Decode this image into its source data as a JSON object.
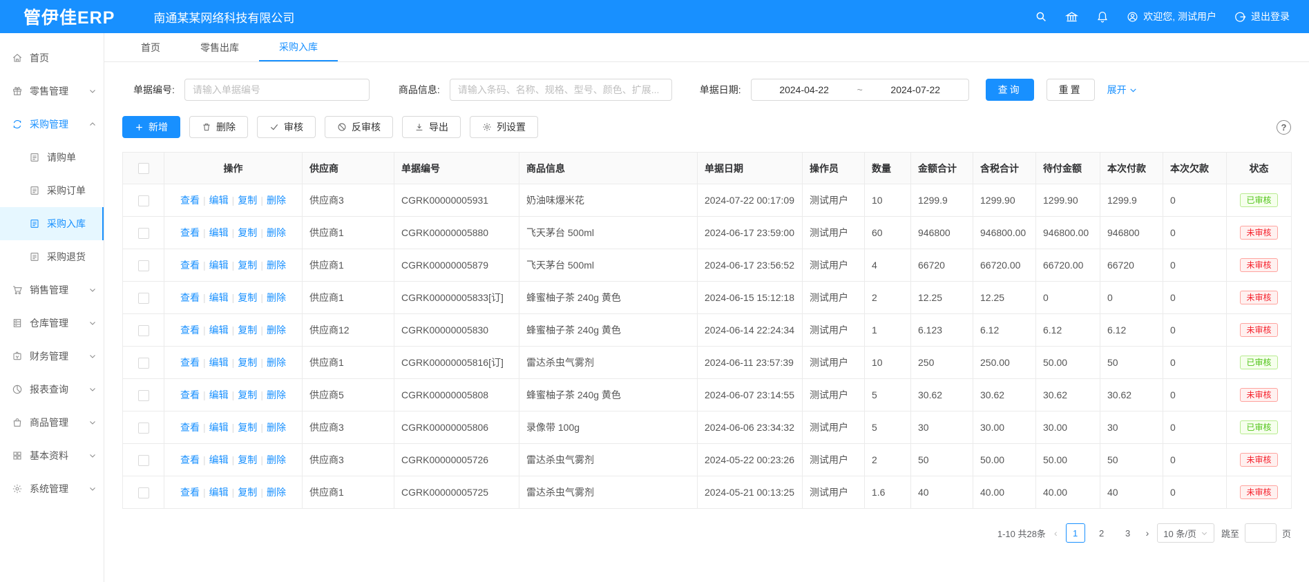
{
  "topbar": {
    "logo": "管伊佳ERP",
    "company": "南通某某网络科技有限公司",
    "welcome": "欢迎您, 测试用户",
    "logout": "退出登录"
  },
  "tabs": [
    {
      "label": "首页",
      "active": false
    },
    {
      "label": "零售出库",
      "active": false
    },
    {
      "label": "采购入库",
      "active": true
    }
  ],
  "sidebar": {
    "items": [
      {
        "name": "home",
        "icon": "home-icon",
        "label": "首页"
      },
      {
        "name": "retail-mgmt",
        "icon": "gift-icon",
        "label": "零售管理",
        "chevron": "down"
      },
      {
        "name": "purchase-mgmt",
        "icon": "sync-icon",
        "label": "采购管理",
        "chevron": "up",
        "parentActive": true
      },
      {
        "name": "purchase-request",
        "icon": "doc-icon",
        "label": "请购单",
        "child": true
      },
      {
        "name": "purchase-order",
        "icon": "doc-icon",
        "label": "采购订单",
        "child": true
      },
      {
        "name": "purchase-inbound",
        "icon": "doc-icon",
        "label": "采购入库",
        "child": true,
        "active": true
      },
      {
        "name": "purchase-return",
        "icon": "doc-icon",
        "label": "采购退货",
        "child": true
      },
      {
        "name": "sales-mgmt",
        "icon": "cart-icon",
        "label": "销售管理",
        "chevron": "down"
      },
      {
        "name": "warehouse-mgmt",
        "icon": "warehouse-icon",
        "label": "仓库管理",
        "chevron": "down"
      },
      {
        "name": "finance-mgmt",
        "icon": "finance-icon",
        "label": "财务管理",
        "chevron": "down"
      },
      {
        "name": "report-query",
        "icon": "pie-chart-icon",
        "label": "报表查询",
        "chevron": "down"
      },
      {
        "name": "goods-mgmt",
        "icon": "bag-icon",
        "label": "商品管理",
        "chevron": "down"
      },
      {
        "name": "basic-data",
        "icon": "grid-icon",
        "label": "基本资料",
        "chevron": "down"
      },
      {
        "name": "system-mgmt",
        "icon": "gear-icon",
        "label": "系统管理",
        "chevron": "down"
      }
    ]
  },
  "filters": {
    "order_no_label": "单据编号:",
    "order_no_placeholder": "请输入单据编号",
    "product_label": "商品信息:",
    "product_placeholder": "请输入条码、名称、规格、型号、颜色、扩展...",
    "date_label": "单据日期:",
    "date_start": "2024-04-22",
    "date_separator": "~",
    "date_end": "2024-07-22",
    "search_label": "查询",
    "reset_label": "重置",
    "expand_label": "展开"
  },
  "toolbar": {
    "buttons": [
      "新增",
      "删除",
      "审核",
      "反审核",
      "导出",
      "列设置"
    ]
  },
  "table": {
    "headers": [
      "操作",
      "供应商",
      "单据编号",
      "商品信息",
      "单据日期",
      "操作员",
      "数量",
      "金额合计",
      "含税合计",
      "待付金额",
      "本次付款",
      "本次欠款",
      "状态"
    ],
    "action_links": [
      "查看",
      "编辑",
      "复制",
      "删除"
    ],
    "rows": [
      {
        "supplier": "供应商3",
        "order_no": "CGRK00000005931",
        "product": "奶油味爆米花",
        "date": "2024-07-22 00:17:09",
        "operator": "测试用户",
        "qty": "10",
        "amount": "1299.9",
        "tax": "1299.90",
        "payable": "1299.90",
        "paid": "1299.9",
        "owed": "0",
        "status": "已审核",
        "status_type": "approved"
      },
      {
        "supplier": "供应商1",
        "order_no": "CGRK00000005880",
        "product": "飞天茅台 500ml",
        "date": "2024-06-17 23:59:00",
        "operator": "测试用户",
        "qty": "60",
        "amount": "946800",
        "tax": "946800.00",
        "payable": "946800.00",
        "paid": "946800",
        "owed": "0",
        "status": "未审核",
        "status_type": "pending"
      },
      {
        "supplier": "供应商1",
        "order_no": "CGRK00000005879",
        "product": "飞天茅台 500ml",
        "date": "2024-06-17 23:56:52",
        "operator": "测试用户",
        "qty": "4",
        "amount": "66720",
        "tax": "66720.00",
        "payable": "66720.00",
        "paid": "66720",
        "owed": "0",
        "status": "未审核",
        "status_type": "pending"
      },
      {
        "supplier": "供应商1",
        "order_no": "CGRK00000005833[订]",
        "product": "蜂蜜柚子茶 240g 黄色",
        "date": "2024-06-15 15:12:18",
        "operator": "测试用户",
        "qty": "2",
        "amount": "12.25",
        "tax": "12.25",
        "payable": "0",
        "paid": "0",
        "owed": "0",
        "status": "未审核",
        "status_type": "pending"
      },
      {
        "supplier": "供应商12",
        "order_no": "CGRK00000005830",
        "product": "蜂蜜柚子茶 240g 黄色",
        "date": "2024-06-14 22:24:34",
        "operator": "测试用户",
        "qty": "1",
        "amount": "6.123",
        "tax": "6.12",
        "payable": "6.12",
        "paid": "6.12",
        "owed": "0",
        "status": "未审核",
        "status_type": "pending"
      },
      {
        "supplier": "供应商1",
        "order_no": "CGRK00000005816[订]",
        "product": "雷达杀虫气雾剂",
        "date": "2024-06-11 23:57:39",
        "operator": "测试用户",
        "qty": "10",
        "amount": "250",
        "tax": "250.00",
        "payable": "50.00",
        "paid": "50",
        "owed": "0",
        "status": "已审核",
        "status_type": "approved"
      },
      {
        "supplier": "供应商5",
        "order_no": "CGRK00000005808",
        "product": "蜂蜜柚子茶 240g 黄色",
        "date": "2024-06-07 23:14:55",
        "operator": "测试用户",
        "qty": "5",
        "amount": "30.62",
        "tax": "30.62",
        "payable": "30.62",
        "paid": "30.62",
        "owed": "0",
        "status": "未审核",
        "status_type": "pending"
      },
      {
        "supplier": "供应商3",
        "order_no": "CGRK00000005806",
        "product": "录像带 100g",
        "date": "2024-06-06 23:34:32",
        "operator": "测试用户",
        "qty": "5",
        "amount": "30",
        "tax": "30.00",
        "payable": "30.00",
        "paid": "30",
        "owed": "0",
        "status": "已审核",
        "status_type": "approved"
      },
      {
        "supplier": "供应商3",
        "order_no": "CGRK00000005726",
        "product": "雷达杀虫气雾剂",
        "date": "2024-05-22 00:23:26",
        "operator": "测试用户",
        "qty": "2",
        "amount": "50",
        "tax": "50.00",
        "payable": "50.00",
        "paid": "50",
        "owed": "0",
        "status": "未审核",
        "status_type": "pending"
      },
      {
        "supplier": "供应商1",
        "order_no": "CGRK00000005725",
        "product": "雷达杀虫气雾剂",
        "date": "2024-05-21 00:13:25",
        "operator": "测试用户",
        "qty": "1.6",
        "amount": "40",
        "tax": "40.00",
        "payable": "40.00",
        "paid": "40",
        "owed": "0",
        "status": "未审核",
        "status_type": "pending"
      }
    ]
  },
  "pagination": {
    "total": "1-10 共28条",
    "prev": "‹",
    "pages": [
      "1",
      "2",
      "3"
    ],
    "current": "1",
    "next": "›",
    "page_size": "10 条/页",
    "jump_prefix": "跳至",
    "jump_suffix": "页"
  },
  "colors": {
    "accent": "#1890ff",
    "approved": "#52c41a",
    "pending": "#f5222d"
  }
}
